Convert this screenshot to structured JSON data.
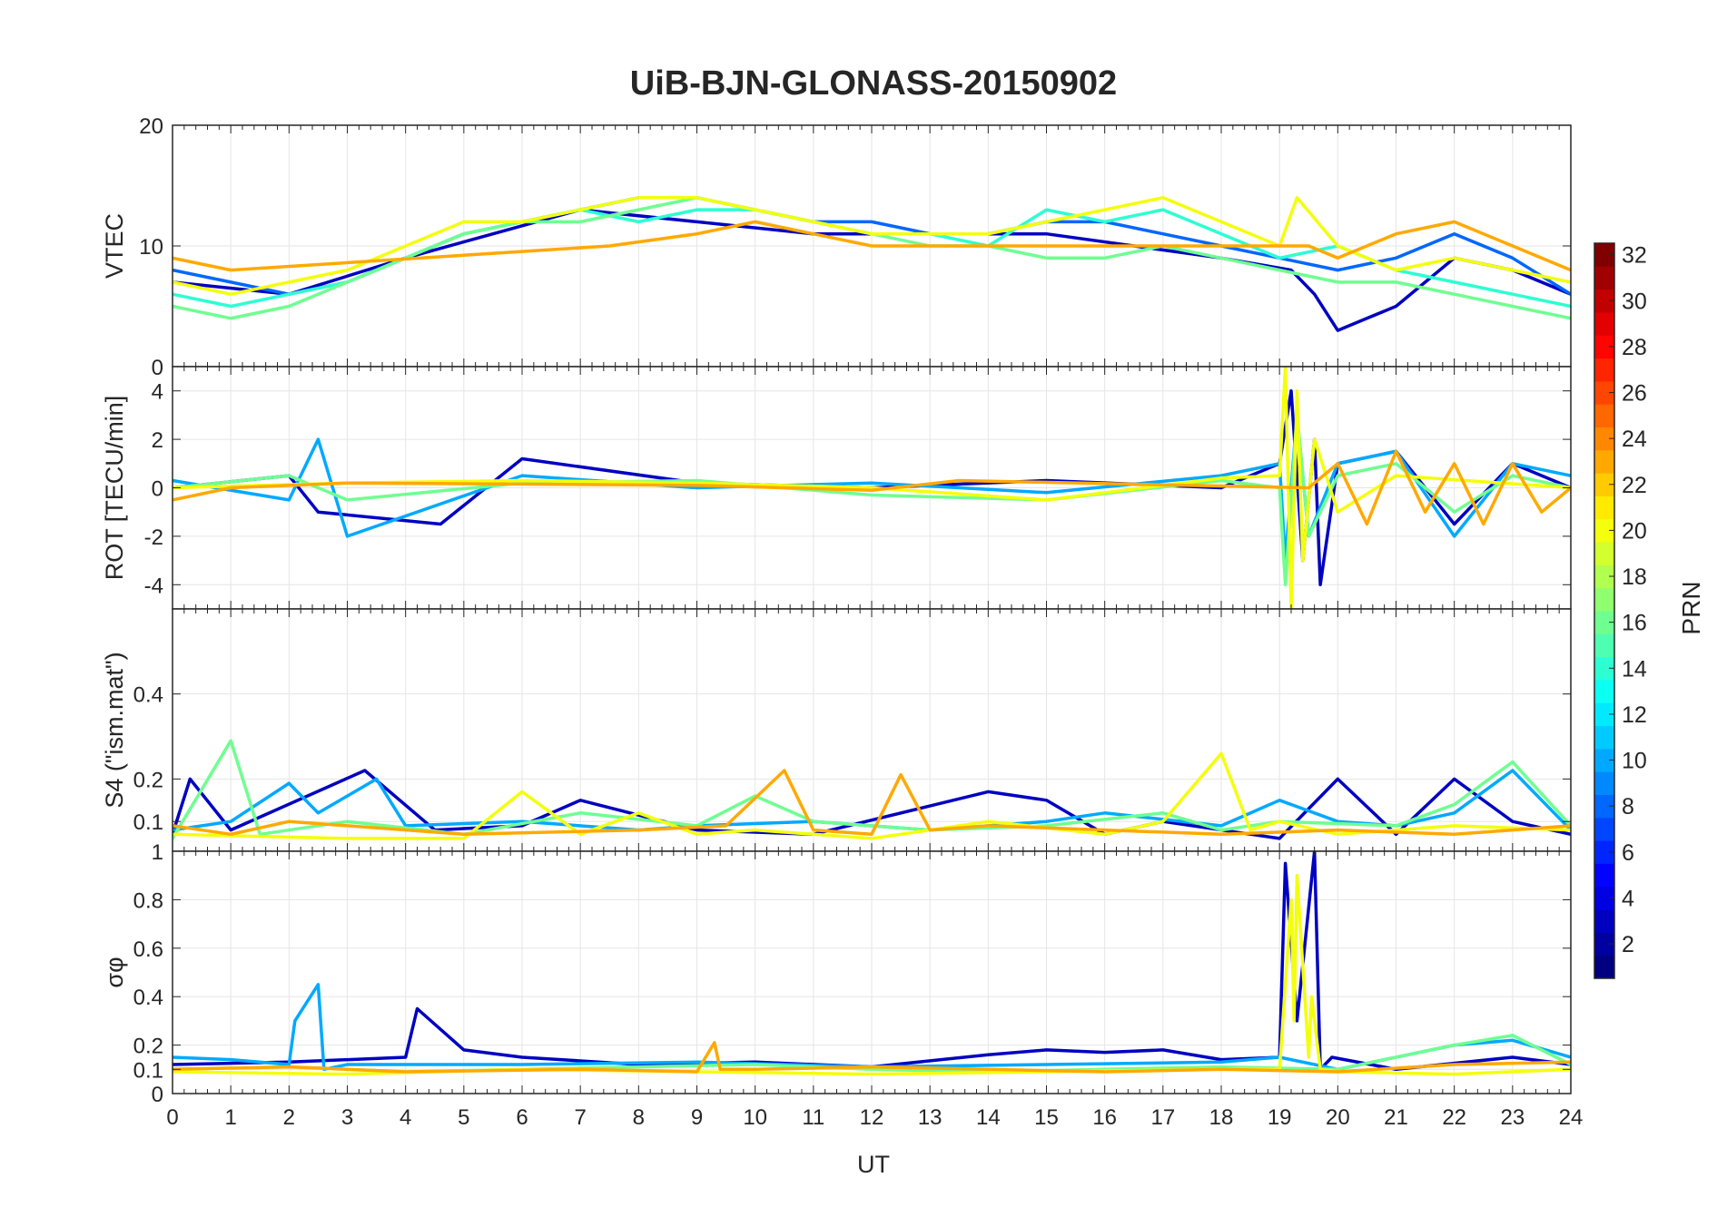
{
  "title": "UiB-BJN-GLONASS-20150902",
  "xlabel": "UT",
  "x_ticks": [
    0,
    1,
    2,
    3,
    4,
    5,
    6,
    7,
    8,
    9,
    10,
    11,
    12,
    13,
    14,
    15,
    16,
    17,
    18,
    19,
    20,
    21,
    22,
    23,
    24
  ],
  "colorbar": {
    "label": "PRN",
    "ticks": [
      2,
      4,
      6,
      8,
      10,
      12,
      14,
      16,
      18,
      20,
      22,
      24,
      26,
      28,
      30,
      32
    ],
    "range": [
      1,
      32
    ],
    "colormap": "jet"
  },
  "chart_data": [
    {
      "type": "line",
      "panel": "vtec",
      "ylabel": "VTEC",
      "ylim": [
        0,
        20
      ],
      "yticks": [
        0,
        10,
        20
      ],
      "xlim": [
        0,
        24
      ],
      "grid": true,
      "series": [
        {
          "prn": 3,
          "x": [
            0,
            2,
            4,
            5.5,
            7,
            9,
            11,
            13,
            15,
            16.5,
            18,
            19.2,
            19.6,
            20,
            20.5,
            21,
            21.5,
            22,
            23,
            24
          ],
          "y": [
            7,
            6,
            9,
            11,
            13,
            12,
            11,
            11,
            11,
            10,
            9,
            8,
            6,
            3,
            4,
            5,
            7,
            9,
            8,
            6
          ]
        },
        {
          "prn": 8,
          "x": [
            0,
            1,
            2,
            3,
            4,
            5,
            6,
            7,
            8,
            9,
            10,
            11,
            12,
            13,
            14,
            15,
            16,
            17,
            18,
            19,
            20,
            21,
            22,
            23,
            24
          ],
          "y": [
            8,
            7,
            6,
            7,
            9,
            11,
            12,
            13,
            14,
            14,
            13,
            12,
            12,
            11,
            11,
            12,
            12,
            11,
            10,
            9,
            8,
            9,
            11,
            9,
            6
          ]
        },
        {
          "prn": 14,
          "x": [
            0,
            1,
            2,
            3,
            4,
            5,
            6,
            7,
            8,
            9,
            10,
            11,
            12,
            13,
            14,
            15,
            16,
            17,
            18,
            19,
            20,
            21,
            22,
            23,
            24
          ],
          "y": [
            6,
            5,
            6,
            7,
            9,
            11,
            12,
            13,
            12,
            13,
            13,
            12,
            11,
            11,
            10,
            13,
            12,
            13,
            11,
            9,
            10,
            8,
            7,
            6,
            5
          ]
        },
        {
          "prn": 16,
          "x": [
            0,
            1,
            2,
            3,
            4,
            5,
            6,
            7,
            8,
            9,
            10,
            11,
            12,
            13,
            14,
            15,
            16,
            17,
            18,
            19,
            20,
            21,
            22,
            23,
            24
          ],
          "y": [
            5,
            4,
            5,
            7,
            9,
            11,
            12,
            12,
            13,
            14,
            13,
            12,
            11,
            10,
            10,
            9,
            9,
            10,
            9,
            8,
            7,
            7,
            6,
            5,
            4
          ]
        },
        {
          "prn": 20,
          "x": [
            0,
            1,
            2,
            3,
            4,
            5,
            6,
            7,
            8,
            9,
            10,
            11,
            12,
            13,
            14,
            15,
            16,
            17,
            18,
            19,
            19.3,
            20,
            21,
            22,
            23,
            24
          ],
          "y": [
            7,
            6,
            7,
            8,
            10,
            12,
            12,
            13,
            14,
            14,
            13,
            12,
            11,
            11,
            11,
            12,
            13,
            14,
            12,
            10,
            14,
            10,
            8,
            9,
            8,
            7
          ]
        },
        {
          "prn": 23,
          "x": [
            0,
            1,
            7.5,
            9,
            10,
            11,
            12,
            13,
            14,
            19.5,
            20,
            21,
            22,
            23,
            24
          ],
          "y": [
            9,
            8,
            10,
            11,
            12,
            11,
            10,
            10,
            10,
            10,
            9,
            11,
            12,
            10,
            8
          ]
        }
      ]
    },
    {
      "type": "line",
      "panel": "rot",
      "ylabel": "ROT [TECU/min]",
      "ylim": [
        -5,
        5
      ],
      "yticks": [
        -4,
        -2,
        0,
        2,
        4
      ],
      "xlim": [
        0,
        24
      ],
      "grid": true,
      "series": [
        {
          "prn": 3,
          "x": [
            0,
            2,
            2.5,
            4.6,
            6,
            9,
            12,
            15,
            18,
            19,
            19.2,
            19.4,
            19.6,
            19.7,
            20,
            21,
            22,
            23,
            24
          ],
          "y": [
            0,
            0.5,
            -1,
            -1.5,
            1.2,
            0.2,
            0,
            0.3,
            0,
            1,
            4,
            -3,
            2,
            -4,
            1,
            1.5,
            -1.5,
            1,
            0
          ]
        },
        {
          "prn": 10,
          "x": [
            0,
            2,
            2.5,
            3,
            6,
            9,
            12,
            15,
            18,
            19,
            19.1,
            19.3,
            19.5,
            20,
            21,
            22,
            23,
            24
          ],
          "y": [
            0.3,
            -0.5,
            2,
            -2,
            0.5,
            0,
            0.2,
            -0.2,
            0.5,
            1,
            -3,
            3,
            -2,
            1,
            1.5,
            -2,
            1,
            0.5
          ]
        },
        {
          "prn": 16,
          "x": [
            0,
            2,
            3,
            6,
            9,
            12,
            15,
            18,
            19,
            19.1,
            19.3,
            19.5,
            20,
            21,
            22,
            23,
            24
          ],
          "y": [
            0,
            0.5,
            -0.5,
            0.2,
            0.3,
            -0.3,
            -0.5,
            0.3,
            0,
            -4,
            3,
            -2,
            0.5,
            1,
            -1,
            0.5,
            0
          ]
        },
        {
          "prn": 20,
          "x": [
            0,
            3,
            6,
            9,
            12,
            15,
            18,
            19,
            19.1,
            19.2,
            19.3,
            19.4,
            19.6,
            20,
            21,
            24
          ],
          "y": [
            0,
            0.2,
            0.3,
            0.2,
            0,
            -0.5,
            0.4,
            0.5,
            5,
            -5,
            4,
            -3,
            2,
            -1,
            0.5,
            0
          ]
        },
        {
          "prn": 23,
          "x": [
            0,
            1,
            3,
            9,
            12,
            13.5,
            19.5,
            20,
            20.5,
            21,
            21.5,
            22,
            22.5,
            23,
            23.5,
            24
          ],
          "y": [
            -0.5,
            0,
            0.2,
            0.1,
            -0.1,
            0.3,
            0,
            1,
            -1.5,
            1.5,
            -1,
            1,
            -1.5,
            1,
            -1,
            0
          ]
        }
      ]
    },
    {
      "type": "line",
      "panel": "s4",
      "ylabel": "S4 (\"ism.mat\")",
      "ylim": [
        0.03,
        0.6
      ],
      "yticks": [
        0.1,
        0.2,
        0.4
      ],
      "xlim": [
        0,
        24
      ],
      "grid": true,
      "series": [
        {
          "prn": 3,
          "x": [
            0,
            0.3,
            1,
            3.3,
            4.5,
            6,
            7,
            9,
            11,
            14,
            15,
            16,
            17,
            19,
            20,
            21,
            22,
            23,
            24
          ],
          "y": [
            0.07,
            0.2,
            0.08,
            0.22,
            0.08,
            0.09,
            0.15,
            0.08,
            0.07,
            0.17,
            0.15,
            0.07,
            0.1,
            0.06,
            0.2,
            0.07,
            0.2,
            0.1,
            0.07
          ]
        },
        {
          "prn": 10,
          "x": [
            0,
            1,
            2,
            2.5,
            3.5,
            4,
            6,
            8,
            9,
            11,
            13,
            15,
            16,
            18,
            19,
            20,
            21,
            22,
            23,
            24
          ],
          "y": [
            0.08,
            0.1,
            0.19,
            0.12,
            0.2,
            0.09,
            0.1,
            0.08,
            0.09,
            0.1,
            0.08,
            0.1,
            0.12,
            0.09,
            0.15,
            0.1,
            0.09,
            0.12,
            0.22,
            0.08
          ]
        },
        {
          "prn": 16,
          "x": [
            0,
            1,
            1.5,
            3,
            5,
            7,
            9,
            10,
            11,
            13,
            15,
            17,
            18,
            19,
            21,
            22,
            23,
            24
          ],
          "y": [
            0.06,
            0.29,
            0.07,
            0.1,
            0.07,
            0.12,
            0.09,
            0.16,
            0.1,
            0.08,
            0.09,
            0.12,
            0.08,
            0.1,
            0.09,
            0.14,
            0.24,
            0.09
          ]
        },
        {
          "prn": 20,
          "x": [
            0,
            3,
            5,
            6,
            7,
            8,
            9,
            10,
            12,
            14,
            16,
            17,
            18,
            18.5,
            19,
            20,
            21,
            22,
            24
          ],
          "y": [
            0.07,
            0.06,
            0.06,
            0.17,
            0.07,
            0.12,
            0.07,
            0.08,
            0.06,
            0.1,
            0.07,
            0.1,
            0.26,
            0.08,
            0.1,
            0.07,
            0.08,
            0.09,
            0.08
          ]
        },
        {
          "prn": 23,
          "x": [
            0,
            1,
            2,
            5,
            8,
            9.5,
            10.5,
            11,
            12,
            12.5,
            13,
            14,
            16,
            18,
            20,
            22,
            23,
            24
          ],
          "y": [
            0.09,
            0.07,
            0.1,
            0.07,
            0.08,
            0.09,
            0.22,
            0.08,
            0.07,
            0.21,
            0.08,
            0.09,
            0.08,
            0.07,
            0.08,
            0.07,
            0.08,
            0.09
          ]
        }
      ]
    },
    {
      "type": "line",
      "panel": "sigma_phi",
      "ylabel": "σφ",
      "ylim": [
        0,
        1
      ],
      "yticks": [
        0,
        0.1,
        0.2,
        0.4,
        0.6,
        0.8,
        1
      ],
      "xlim": [
        0,
        24
      ],
      "grid": true,
      "series": [
        {
          "prn": 3,
          "x": [
            0,
            2,
            4,
            4.2,
            5,
            6,
            8,
            10,
            12,
            14,
            15,
            16,
            17,
            18,
            19,
            19.1,
            19.3,
            19.6,
            19.7,
            19.9,
            21,
            23,
            24
          ],
          "y": [
            0.12,
            0.13,
            0.15,
            0.35,
            0.18,
            0.15,
            0.12,
            0.13,
            0.11,
            0.16,
            0.18,
            0.17,
            0.18,
            0.14,
            0.15,
            0.95,
            0.3,
            1,
            0.1,
            0.15,
            0.1,
            0.15,
            0.12
          ]
        },
        {
          "prn": 10,
          "x": [
            0,
            1,
            2,
            2.1,
            2.5,
            2.6,
            3,
            6,
            9,
            12,
            15,
            18,
            19,
            20,
            22,
            23,
            24
          ],
          "y": [
            0.15,
            0.14,
            0.12,
            0.3,
            0.45,
            0.1,
            0.12,
            0.12,
            0.13,
            0.11,
            0.12,
            0.13,
            0.15,
            0.1,
            0.2,
            0.22,
            0.15
          ]
        },
        {
          "prn": 16,
          "x": [
            0,
            2,
            4,
            6,
            8,
            10,
            12,
            14,
            16,
            18,
            20,
            22,
            23,
            24
          ],
          "y": [
            0.1,
            0.11,
            0.09,
            0.1,
            0.11,
            0.12,
            0.1,
            0.09,
            0.1,
            0.11,
            0.1,
            0.2,
            0.24,
            0.12
          ]
        },
        {
          "prn": 20,
          "x": [
            0,
            3,
            6,
            9,
            12,
            15,
            18,
            19,
            19.2,
            19.25,
            19.3,
            19.5,
            19.55,
            19.7,
            20,
            22,
            24
          ],
          "y": [
            0.09,
            0.08,
            0.1,
            0.09,
            0.08,
            0.09,
            0.1,
            0.1,
            0.8,
            0.3,
            0.9,
            0.15,
            0.4,
            0.1,
            0.09,
            0.08,
            0.1
          ]
        },
        {
          "prn": 23,
          "x": [
            0,
            2,
            4,
            7,
            9,
            9.3,
            9.4,
            10,
            12,
            14,
            16,
            18,
            20,
            22,
            24
          ],
          "y": [
            0.1,
            0.11,
            0.09,
            0.1,
            0.09,
            0.21,
            0.1,
            0.1,
            0.11,
            0.1,
            0.09,
            0.1,
            0.09,
            0.12,
            0.13
          ]
        }
      ]
    }
  ]
}
